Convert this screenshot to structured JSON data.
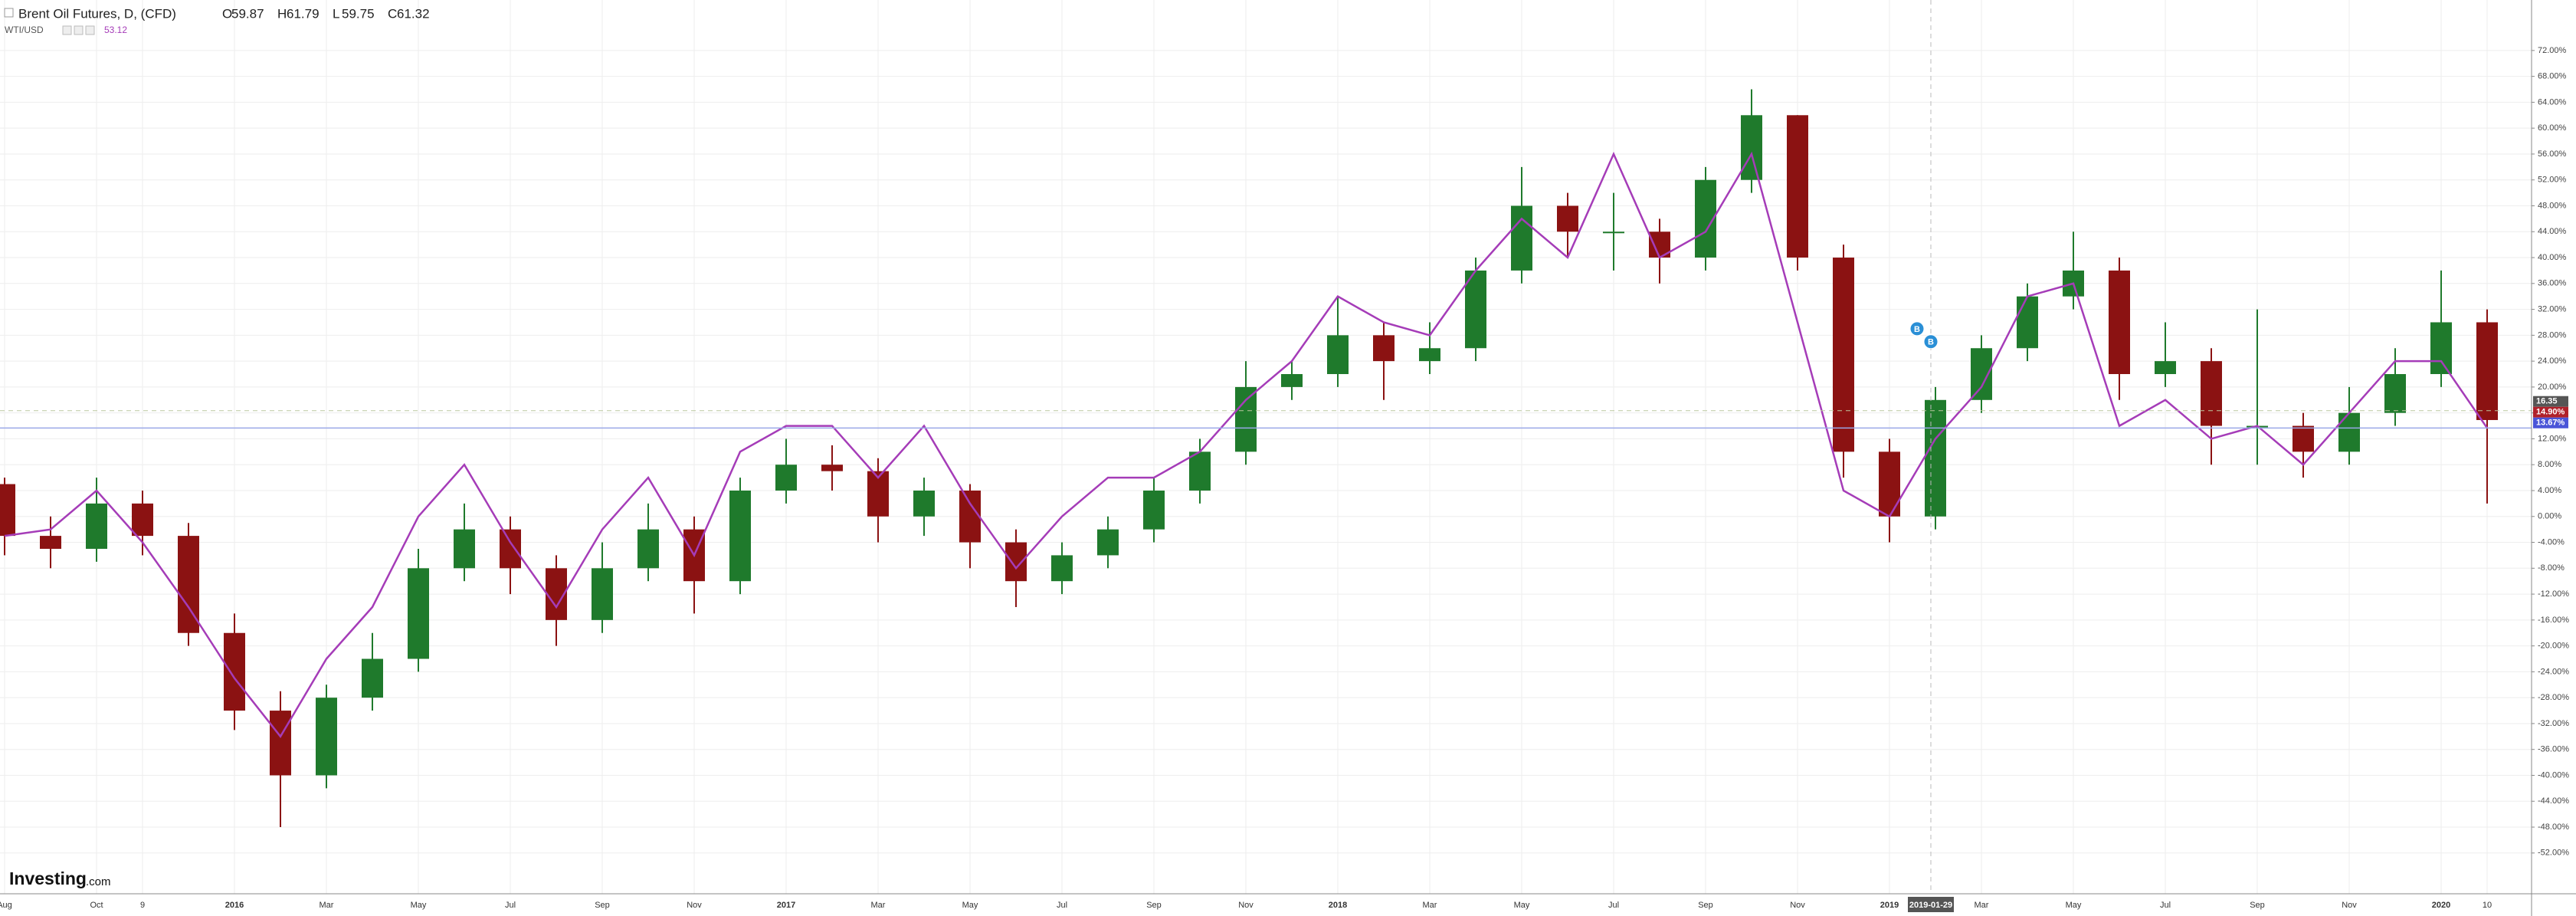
{
  "header": {
    "symbol": "Brent Oil Futures, D, (CFD)",
    "ohlc": [
      {
        "key": "O",
        "value": 59.87
      },
      {
        "key": "H",
        "value": 61.79
      },
      {
        "key": "L",
        "value": 59.75
      },
      {
        "key": "C",
        "value": 61.32
      }
    ],
    "compare_symbol": "WTI/USD",
    "compare_value": 53.12
  },
  "logo": {
    "name": "Investing",
    "suffix": ".com"
  },
  "chart_data": {
    "type": "candlestick",
    "categories": [
      "Aug",
      null,
      "Oct",
      "9",
      null,
      "2016",
      null,
      "Mar",
      null,
      "May",
      null,
      "Jul",
      null,
      "Sep",
      null,
      "Nov",
      null,
      "2017",
      null,
      "Mar",
      null,
      "May",
      null,
      "Jul",
      null,
      "Sep",
      null,
      "Nov",
      null,
      "2018",
      null,
      "Mar",
      null,
      "May",
      null,
      "Jul",
      null,
      "Sep",
      null,
      "Nov",
      null,
      "2019",
      null,
      "Mar",
      null,
      "May",
      null,
      "Jul",
      null,
      "Sep",
      null,
      "Nov",
      null,
      "2020",
      "10"
    ],
    "candles": {
      "name": "Brent Oil Futures",
      "up_color": "#1f7a2c",
      "down_color": "#8b1212",
      "open": [
        5,
        -3,
        -5,
        2,
        -3,
        -18,
        -30,
        -40,
        -28,
        -22,
        -8,
        -2,
        -8,
        -16,
        -8,
        -2,
        -10,
        4,
        8,
        7,
        0,
        4,
        -4,
        -10,
        -6,
        -2,
        4,
        10,
        20,
        22,
        28,
        24,
        26,
        38,
        48,
        44,
        44,
        40,
        52,
        62,
        40,
        10,
        0,
        18,
        26,
        34,
        38,
        22,
        24,
        14,
        14,
        10,
        16,
        22,
        30
      ],
      "high": [
        6,
        0,
        6,
        4,
        -1,
        -15,
        -27,
        -26,
        -18,
        -5,
        2,
        0,
        -6,
        -4,
        2,
        0,
        6,
        12,
        11,
        9,
        6,
        5,
        -2,
        -4,
        0,
        6,
        12,
        24,
        24,
        34,
        30,
        30,
        40,
        54,
        50,
        50,
        46,
        54,
        66,
        62,
        42,
        12,
        20,
        28,
        36,
        44,
        40,
        30,
        26,
        32,
        16,
        20,
        26,
        38,
        32
      ],
      "low": [
        -6,
        -8,
        -7,
        -6,
        -20,
        -33,
        -48,
        -42,
        -30,
        -24,
        -10,
        -12,
        -20,
        -18,
        -10,
        -15,
        -12,
        2,
        4,
        -4,
        -3,
        -8,
        -14,
        -12,
        -8,
        -4,
        2,
        8,
        18,
        20,
        18,
        22,
        24,
        36,
        40,
        38,
        36,
        38,
        50,
        38,
        6,
        -4,
        -2,
        16,
        24,
        32,
        18,
        20,
        8,
        8,
        6,
        8,
        14,
        20,
        2
      ],
      "close": [
        -3,
        -5,
        2,
        -3,
        -18,
        -30,
        -40,
        -28,
        -22,
        -8,
        -2,
        -8,
        -16,
        -8,
        -2,
        -10,
        4,
        8,
        7,
        0,
        4,
        -4,
        -10,
        -6,
        -2,
        4,
        10,
        20,
        22,
        28,
        24,
        26,
        38,
        48,
        44,
        44,
        40,
        52,
        62,
        40,
        10,
        0,
        18,
        26,
        34,
        38,
        22,
        24,
        14,
        14,
        10,
        16,
        22,
        30,
        14.9
      ],
      "last_label": "14.90%"
    },
    "series": [
      {
        "name": "WTI/USD",
        "type": "line",
        "color": "#a53cb8",
        "values": [
          -3,
          -2,
          4,
          -4,
          -14,
          -25,
          -34,
          -22,
          -14,
          0,
          8,
          -4,
          -14,
          -2,
          6,
          -6,
          10,
          14,
          14,
          6,
          14,
          2,
          -8,
          0,
          6,
          6,
          10,
          18,
          24,
          34,
          30,
          28,
          38,
          46,
          40,
          56,
          40,
          44,
          56,
          30,
          4,
          0,
          12,
          20,
          34,
          36,
          14,
          18,
          12,
          14,
          8,
          16,
          24,
          24,
          13.67
        ],
        "last_label": "13.67%"
      }
    ],
    "crosshair": {
      "x": 41.9,
      "x_label": "2019-01-29",
      "y": 16.35,
      "y_label": "16.35"
    },
    "annotations": [
      {
        "text": "B",
        "x": 41.6,
        "y": 29
      },
      {
        "text": "B",
        "x": 41.9,
        "y": 27
      }
    ],
    "ylim": [
      -58.3,
      79.8
    ],
    "yticks": [
      {
        "value": -52,
        "label": "-52.00%"
      },
      {
        "value": -48,
        "label": "-48.00%"
      },
      {
        "value": -44,
        "label": "-44.00%"
      },
      {
        "value": -40,
        "label": "-40.00%"
      },
      {
        "value": -36,
        "label": "-36.00%"
      },
      {
        "value": -32,
        "label": "-32.00%"
      },
      {
        "value": -28,
        "label": "-28.00%"
      },
      {
        "value": -24,
        "label": "-24.00%"
      },
      {
        "value": -20,
        "label": "-20.00%"
      },
      {
        "value": -16,
        "label": "-16.00%"
      },
      {
        "value": -12,
        "label": "-12.00%"
      },
      {
        "value": -8,
        "label": "-8.00%"
      },
      {
        "value": -4,
        "label": "-4.00%"
      },
      {
        "value": 0,
        "label": "0.00%"
      },
      {
        "value": 4,
        "label": "4.00%"
      },
      {
        "value": 8,
        "label": "8.00%"
      },
      {
        "value": 12,
        "label": "12.00%"
      },
      {
        "value": 16,
        "label": "16.00%"
      },
      {
        "value": 20,
        "label": "20.00%"
      },
      {
        "value": 24,
        "label": "24.00%"
      },
      {
        "value": 28,
        "label": "28.00%"
      },
      {
        "value": 32,
        "label": "32.00%"
      },
      {
        "value": 36,
        "label": "36.00%"
      },
      {
        "value": 40,
        "label": "40.00%"
      },
      {
        "value": 44,
        "label": "44.00%"
      },
      {
        "value": 48,
        "label": "48.00%"
      },
      {
        "value": 52,
        "label": "52.00%"
      },
      {
        "value": 56,
        "label": "56.00%"
      },
      {
        "value": 60,
        "label": "60.00%"
      },
      {
        "value": 64,
        "label": "64.00%"
      },
      {
        "value": 68,
        "label": "68.00%"
      },
      {
        "value": 72,
        "label": "72.00%"
      }
    ],
    "grid": true
  }
}
